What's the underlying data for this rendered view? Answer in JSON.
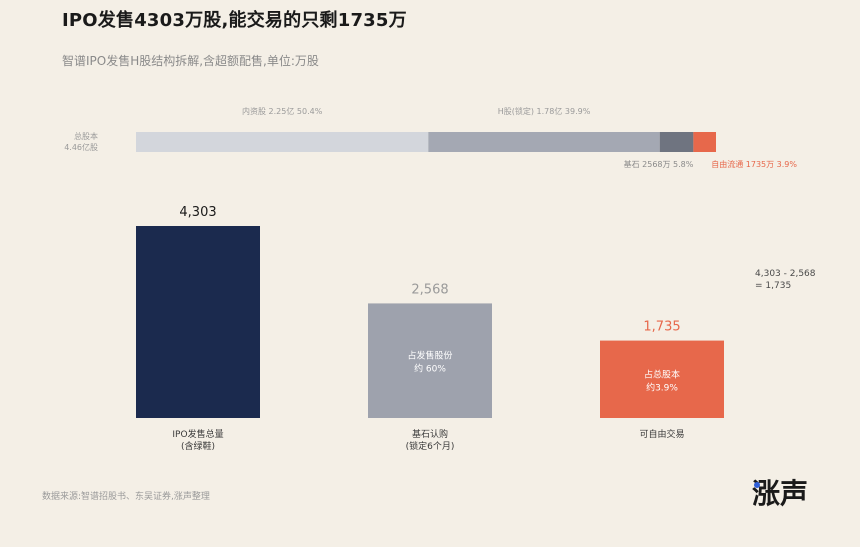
{
  "title": "IPO发售4303万股,能交易的只剩1735万",
  "subtitle": "智谱IPO发售H股结构拆解,含超额配售,单位:万股",
  "source": "数据来源:智谱招股书、东吴证券,涨声整理",
  "brand": "涨声",
  "colors": {
    "background": "#f4efe6",
    "navy": "#1b2a4e",
    "gray": "#9ea2ad",
    "orange": "#e7684b",
    "light_gray": "#d3d6dc",
    "mid_gray": "#a4a8b3",
    "dark_gray": "#6f7480"
  },
  "chart_data": [
    {
      "type": "bar",
      "orientation": "horizontal-stacked",
      "category_label": "总股本",
      "category_total": "4.46亿股",
      "segments": [
        {
          "name": "内资股",
          "label": "内资股 2.25亿 50.4%",
          "value": 2.25,
          "pct": 50.4,
          "color": "#d3d6dc"
        },
        {
          "name": "H股(锁定)",
          "label": "H股(锁定) 1.78亿 39.9%",
          "value": 1.78,
          "pct": 39.9,
          "color": "#a4a8b3"
        },
        {
          "name": "基石",
          "label": "基石 2568万 5.8%",
          "value": 0.2568,
          "pct": 5.8,
          "color": "#6f7480"
        },
        {
          "name": "自由流通",
          "label": "自由流通 1735万 3.9%",
          "value": 0.1735,
          "pct": 3.9,
          "color": "#e7684b"
        }
      ]
    },
    {
      "type": "bar",
      "categories": [
        "IPO发售总量\n(含绿鞋)",
        "基石认购\n(锁定6个月)",
        "可自由交易"
      ],
      "values": [
        4303,
        2568,
        1735
      ],
      "value_labels": [
        "4,303",
        "2,568",
        "1,735"
      ],
      "colors": [
        "#1b2a4e",
        "#9ea2ad",
        "#e7684b"
      ],
      "bar_annotations": [
        "",
        "占发售股份\n约 60%",
        "占总股本\n约3.9%"
      ],
      "side_note": "4,303 - 2,568\n= 1,735",
      "ylim": [
        0,
        4303
      ],
      "grid": false,
      "legend": "none"
    }
  ]
}
